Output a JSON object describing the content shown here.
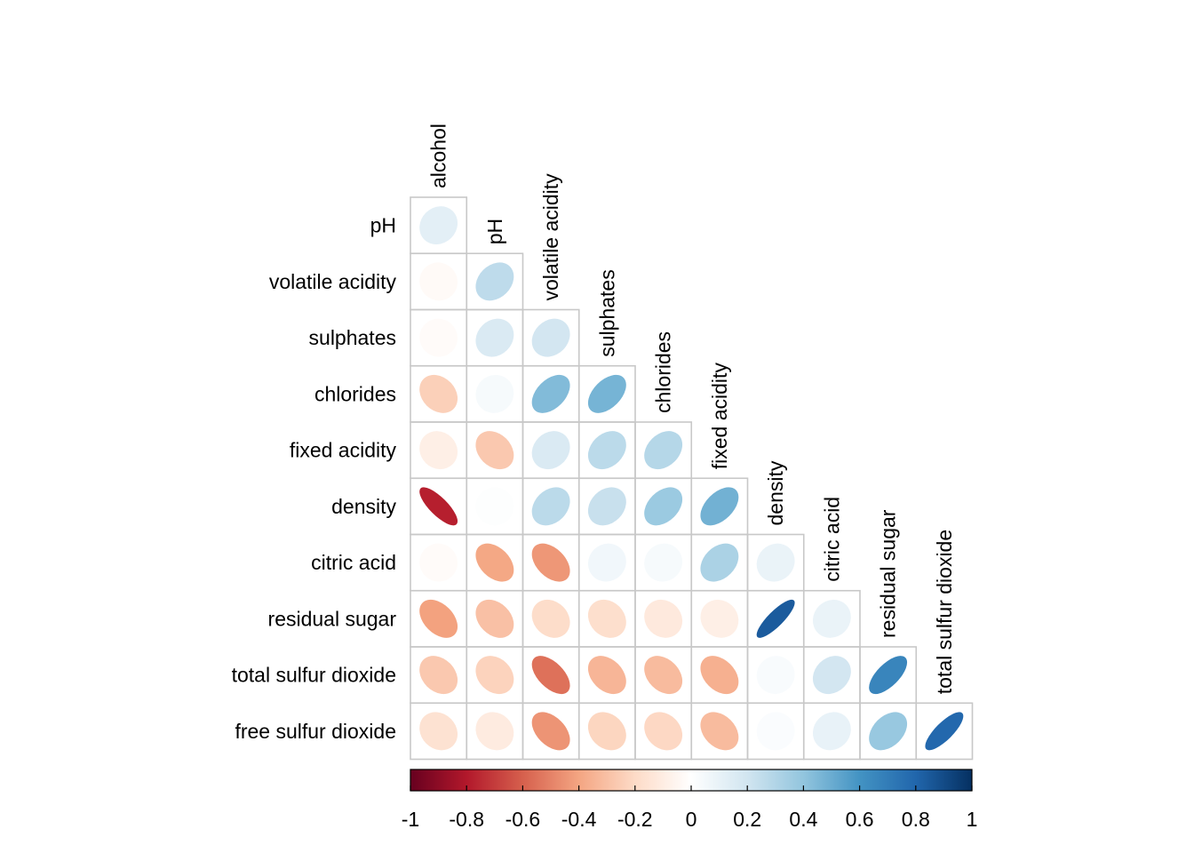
{
  "chart_data": {
    "type": "heatmap",
    "subtype": "correlation-ellipse-lower-triangle",
    "variables": [
      "alcohol",
      "pH",
      "volatile acidity",
      "sulphates",
      "chlorides",
      "fixed acidity",
      "density",
      "citric acid",
      "residual sugar",
      "total sulfur dioxide",
      "free sulfur dioxide"
    ],
    "row_labels": [
      "pH",
      "volatile acidity",
      "sulphates",
      "chlorides",
      "fixed acidity",
      "density",
      "citric acid",
      "residual sugar",
      "total sulfur dioxide",
      "free sulfur dioxide"
    ],
    "col_labels": [
      "alcohol",
      "pH",
      "volatile acidity",
      "sulphates",
      "chlorides",
      "fixed acidity",
      "density",
      "citric acid",
      "residual sugar",
      "total sulfur dioxide"
    ],
    "matrix": [
      [
        0.12
      ],
      [
        -0.03,
        0.26
      ],
      [
        -0.02,
        0.16,
        0.19
      ],
      [
        -0.24,
        0.04,
        0.44,
        0.47
      ],
      [
        -0.09,
        -0.27,
        0.16,
        0.27,
        0.29
      ],
      [
        -0.78,
        0.01,
        0.27,
        0.23,
        0.37,
        0.48
      ],
      [
        -0.02,
        -0.39,
        -0.44,
        0.06,
        0.04,
        0.32,
        0.09
      ],
      [
        -0.41,
        -0.3,
        -0.19,
        -0.18,
        -0.12,
        -0.09,
        0.84,
        0.09
      ],
      [
        -0.27,
        -0.23,
        -0.55,
        -0.34,
        -0.32,
        -0.36,
        0.03,
        0.19,
        0.66
      ],
      [
        -0.16,
        -0.11,
        -0.45,
        -0.22,
        -0.21,
        -0.32,
        0.02,
        0.1,
        0.38,
        0.79
      ]
    ],
    "colorbar": {
      "range": [
        -1,
        1
      ],
      "tick_labels": [
        "-1",
        "-0.8",
        "-0.6",
        "-0.4",
        "-0.2",
        "0",
        "0.2",
        "0.4",
        "0.6",
        "0.8",
        "1"
      ],
      "tick_values": [
        -1,
        -0.8,
        -0.6,
        -0.4,
        -0.2,
        0,
        0.2,
        0.4,
        0.6,
        0.8,
        1
      ],
      "colors": [
        "#67001F",
        "#B2182B",
        "#D6604D",
        "#F4A582",
        "#FDDBC7",
        "#FFFFFF",
        "#D1E5F0",
        "#92C5DE",
        "#4393C3",
        "#2166AC",
        "#053061"
      ]
    },
    "grid": true,
    "legend": "bottom"
  }
}
